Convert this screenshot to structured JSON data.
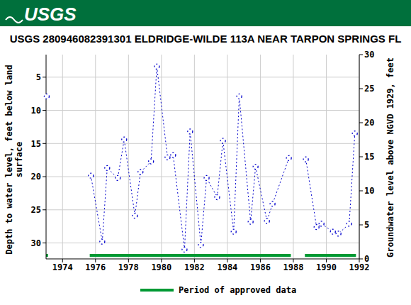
{
  "header_text": "USGS",
  "chart_data": {
    "type": "line",
    "title": "USGS 280946082391301 ELDRIDGE-WILDE 113A NEAR TARPON SPRINGS FL",
    "y_label": "Depth to water level, feet below land surface",
    "y2_label": "Groundwater level above NGVD 1929, feet",
    "x": [
      1973.04,
      1974.4,
      1975.72,
      1976.41,
      1976.71,
      1977.35,
      1977.74,
      1978.39,
      1978.73,
      1979.37,
      1979.72,
      1980.37,
      1980.71,
      1981.4,
      1981.74,
      1982.39,
      1982.74,
      1983.38,
      1983.73,
      1984.38,
      1984.72,
      1985.41,
      1985.71,
      1986.4,
      1986.74,
      1987.73,
      1988.2,
      1988.76,
      1989.41,
      1989.71,
      1990.4,
      1990.74,
      1991.39,
      1991.73
    ],
    "series": [
      {
        "color": "#0000cc",
        "marker": "circle",
        "line_style": "dotted",
        "values": [
          7.9,
          null,
          19.85,
          29.8,
          18.7,
          20.2,
          14.4,
          25.9,
          19.3,
          17.7,
          3.4,
          17.1,
          16.75,
          31.0,
          13.2,
          30.3,
          20.2,
          23.1,
          14.6,
          28.3,
          7.9,
          26.8,
          18.5,
          26.7,
          24.1,
          17.2,
          null,
          17.4,
          27.6,
          27.1,
          28.3,
          28.6,
          27.1,
          13.5
        ]
      }
    ],
    "xlim": [
      1973,
      1992
    ],
    "xticks": [
      1974,
      1976,
      1978,
      1980,
      1982,
      1984,
      1986,
      1988,
      1990,
      1992
    ],
    "ylim": [
      1.6,
      32.4
    ],
    "yticks": [
      5,
      10,
      15,
      20,
      25,
      30
    ],
    "y2lim": [
      0,
      30
    ],
    "y2ticks": [
      0,
      5,
      10,
      15,
      20,
      25,
      30
    ],
    "grid": true,
    "approved_periods": {
      "name": "Period of approved data",
      "color": "#009933",
      "ranges": [
        [
          1973,
          1973.12
        ],
        [
          1975.65,
          1987.85
        ],
        [
          1988.7,
          1991.8
        ]
      ]
    }
  }
}
